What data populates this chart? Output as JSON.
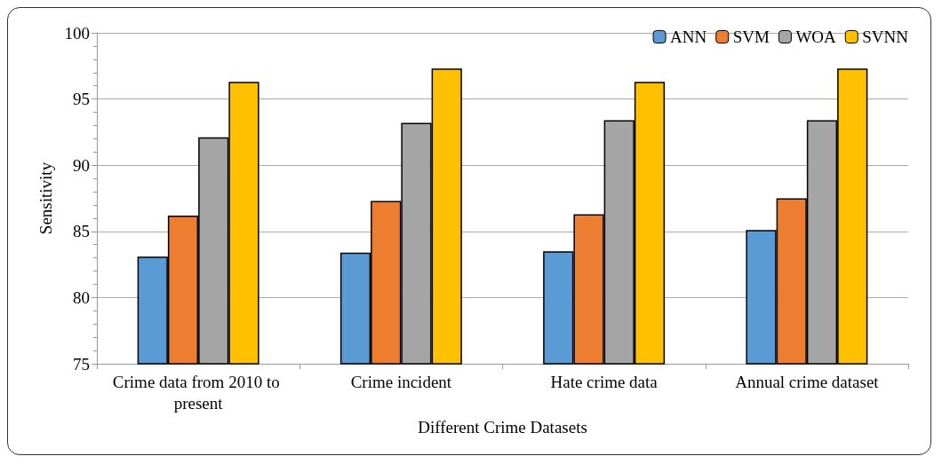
{
  "chart_data": {
    "type": "bar",
    "xlabel": "Different Crime Datasets",
    "ylabel": "Sensitivity",
    "categories": [
      "Crime data from 2010 to present",
      "Crime incident",
      "Hate crime data",
      "Annual crime dataset"
    ],
    "series": [
      {
        "name": "ANN",
        "color": "#5b9bd5",
        "values": [
          83.1,
          83.4,
          83.5,
          85.1
        ]
      },
      {
        "name": "SVM",
        "color": "#ed7d31",
        "values": [
          86.2,
          87.3,
          86.3,
          87.5
        ]
      },
      {
        "name": "WOA",
        "color": "#a5a5a5",
        "values": [
          92.1,
          93.2,
          93.4,
          93.4
        ]
      },
      {
        "name": "SVNN",
        "color": "#ffc000",
        "values": [
          96.3,
          97.3,
          96.3,
          97.3
        ]
      }
    ],
    "ylim": [
      75,
      100
    ],
    "yticks": [
      75,
      80,
      85,
      90,
      95,
      100
    ],
    "grid": "y",
    "legend": "top right"
  }
}
